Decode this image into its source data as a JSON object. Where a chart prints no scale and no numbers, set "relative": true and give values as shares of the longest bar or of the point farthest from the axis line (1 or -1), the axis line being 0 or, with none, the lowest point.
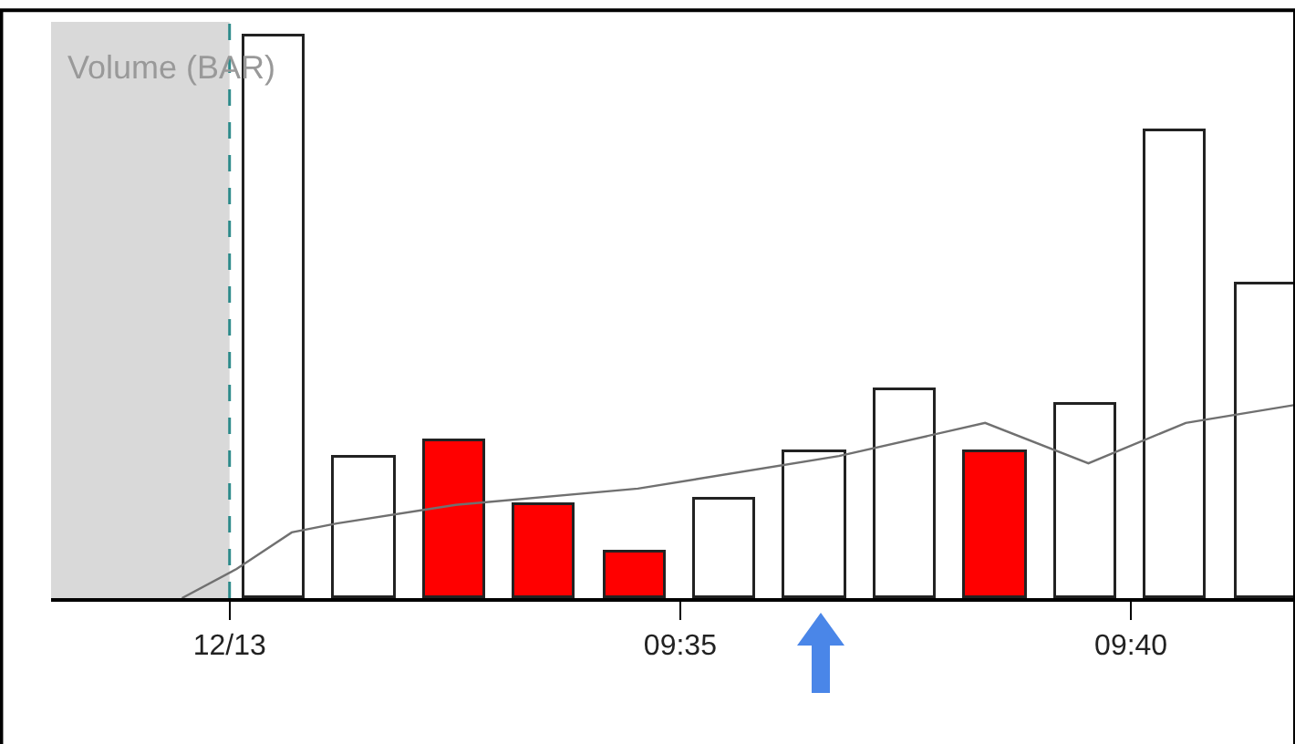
{
  "chart_data": {
    "type": "bar",
    "title": "Volume (BAR)",
    "relative": true,
    "x": [
      9.5083,
      9.525,
      9.5417,
      9.5583,
      9.575,
      9.5917,
      9.6083,
      9.625,
      9.6417,
      9.6583,
      9.675,
      9.6917
    ],
    "series": [
      {
        "values": [
          1,
          0.25,
          0.28,
          0.166,
          0.081,
          0.175,
          0.26,
          0.37,
          0.26,
          0.344,
          0.83,
          0.56
        ],
        "colors": [
          "#ffffff",
          "#ffffff",
          "#ff0000",
          "#ff0000",
          "#ff0000",
          "#ffffff",
          "#ffffff",
          "#ffffff",
          "#ff0000",
          "#ffffff",
          "#ffffff",
          "#ffffff"
        ]
      },
      {
        "type": "line",
        "color": "#707070",
        "x": [
          9.4912,
          9.5013,
          9.5115,
          9.5198,
          9.5418,
          9.5755,
          9.6127,
          9.6397,
          9.6588,
          9.6768,
          9.697
        ],
        "values": [
          0,
          0.052,
          0.117,
          0.133,
          0.166,
          0.195,
          0.253,
          0.312,
          0.24,
          0.312,
          0.344
        ]
      }
    ],
    "xlim": [
      9.467,
      9.697
    ],
    "xticks": [
      {
        "value": 9.5,
        "label": "12/13"
      },
      {
        "value": 9.583333,
        "label": "09:35"
      },
      {
        "value": 9.666667,
        "label": "09:40"
      }
    ],
    "bands": [
      {
        "axis": "x",
        "from": 9.467,
        "to": 9.5,
        "color": "#d9d9d9"
      }
    ],
    "ref_lines": [
      {
        "axis": "x",
        "value": 9.5,
        "color": "#2e8b8b",
        "line_style": "dashed"
      }
    ],
    "grid": false
  }
}
